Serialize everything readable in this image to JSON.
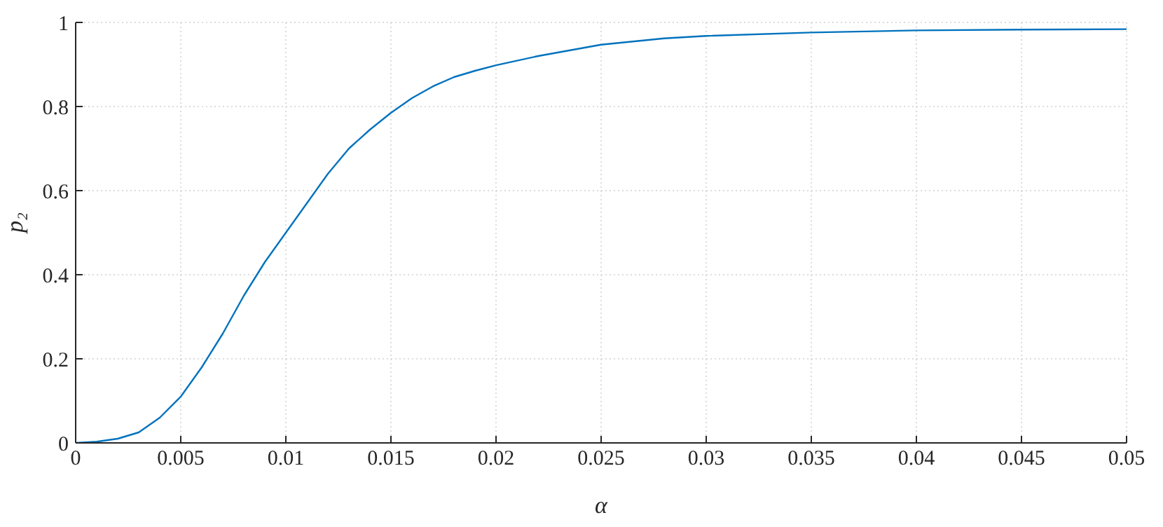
{
  "chart_data": {
    "type": "line",
    "xlabel": "α",
    "ylabel": "p₂",
    "grid": true,
    "line_style": "solid",
    "marker": "none",
    "x": [
      0,
      0.001,
      0.002,
      0.003,
      0.004,
      0.005,
      0.006,
      0.007,
      0.008,
      0.009,
      0.01,
      0.011,
      0.012,
      0.013,
      0.014,
      0.015,
      0.016,
      0.017,
      0.018,
      0.019,
      0.02,
      0.022,
      0.025,
      0.028,
      0.03,
      0.035,
      0.04,
      0.045,
      0.05
    ],
    "series": [
      {
        "color": "#0072bd",
        "values": [
          0,
          0.003,
          0.01,
          0.025,
          0.06,
          0.11,
          0.18,
          0.26,
          0.35,
          0.43,
          0.5,
          0.57,
          0.64,
          0.7,
          0.745,
          0.785,
          0.82,
          0.848,
          0.87,
          0.885,
          0.898,
          0.92,
          0.947,
          0.962,
          0.968,
          0.976,
          0.981,
          0.983,
          0.984
        ]
      }
    ],
    "xlim": [
      0,
      0.05
    ],
    "xticks": [
      0,
      0.005,
      0.01,
      0.015,
      0.02,
      0.025,
      0.03,
      0.035,
      0.04,
      0.045,
      0.05
    ],
    "ylim": [
      0,
      1
    ],
    "yticks": [
      0,
      0.2,
      0.4,
      0.6,
      0.8,
      1
    ]
  }
}
